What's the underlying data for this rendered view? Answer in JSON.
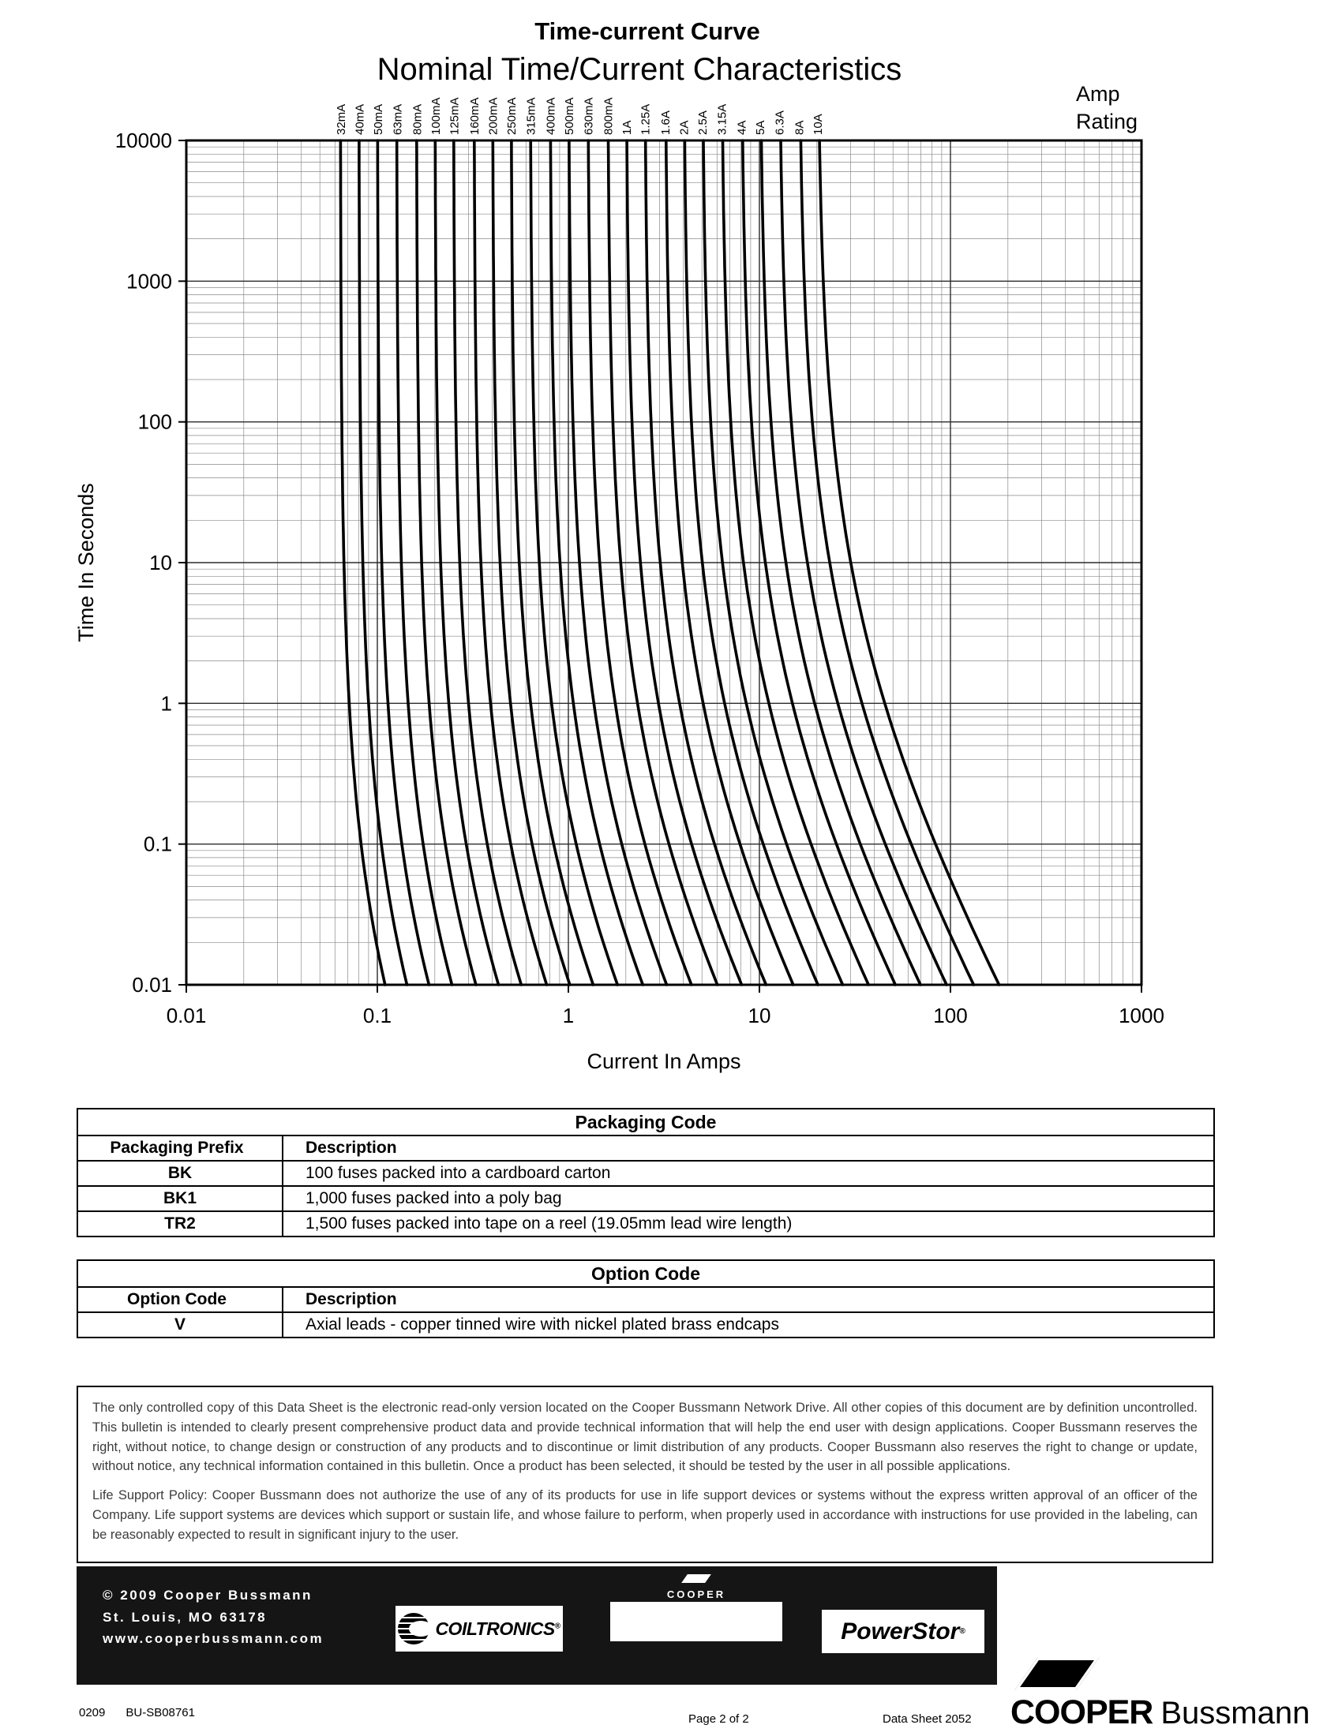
{
  "header": {
    "subtitle": "Time-current Curve",
    "title": "Nominal Time/Current Characteristics",
    "amp_rating_line1": "Amp",
    "amp_rating_line2": "Rating"
  },
  "chart_data": {
    "type": "line",
    "title": "Nominal Time/Current Characteristics",
    "xlabel": "Current In Amps",
    "ylabel": "Time In Seconds",
    "x_scale": "log",
    "y_scale": "log",
    "xlim": [
      0.01,
      1000
    ],
    "ylim": [
      0.01,
      10000
    ],
    "x_ticks": [
      "0.01",
      "0.1",
      "1",
      "10",
      "100",
      "1000"
    ],
    "y_ticks": [
      "10000",
      "1000",
      "100",
      "10",
      "1",
      "0.1",
      "0.01"
    ],
    "grid": true,
    "legend_position": "rotated amp-rating labels above top axis, one per curve",
    "series": [
      {
        "name": "32mA",
        "rating_amps": 0.032,
        "points_amps_seconds": [
          [
            0.064,
            10000
          ],
          [
            0.071,
            1
          ],
          [
            0.11,
            0.01
          ]
        ]
      },
      {
        "name": "40mA",
        "rating_amps": 0.04,
        "points_amps_seconds": [
          [
            0.08,
            10000
          ],
          [
            0.09,
            1
          ],
          [
            0.14,
            0.01
          ]
        ]
      },
      {
        "name": "50mA",
        "rating_amps": 0.05,
        "points_amps_seconds": [
          [
            0.1,
            10000
          ],
          [
            0.114,
            1
          ],
          [
            0.19,
            0.01
          ]
        ]
      },
      {
        "name": "63mA",
        "rating_amps": 0.063,
        "points_amps_seconds": [
          [
            0.126,
            10000
          ],
          [
            0.145,
            1
          ],
          [
            0.25,
            0.01
          ]
        ]
      },
      {
        "name": "80mA",
        "rating_amps": 0.08,
        "points_amps_seconds": [
          [
            0.16,
            10000
          ],
          [
            0.187,
            1
          ],
          [
            0.33,
            0.01
          ]
        ]
      },
      {
        "name": "100mA",
        "rating_amps": 0.1,
        "points_amps_seconds": [
          [
            0.2,
            10000
          ],
          [
            0.237,
            1
          ],
          [
            0.43,
            0.01
          ]
        ]
      },
      {
        "name": "125mA",
        "rating_amps": 0.125,
        "points_amps_seconds": [
          [
            0.25,
            10000
          ],
          [
            0.3,
            1
          ],
          [
            0.57,
            0.01
          ]
        ]
      },
      {
        "name": "160mA",
        "rating_amps": 0.16,
        "points_amps_seconds": [
          [
            0.32,
            10000
          ],
          [
            0.39,
            1
          ],
          [
            0.77,
            0.01
          ]
        ]
      },
      {
        "name": "200mA",
        "rating_amps": 0.2,
        "points_amps_seconds": [
          [
            0.4,
            10000
          ],
          [
            0.5,
            1
          ],
          [
            1.02,
            0.01
          ]
        ]
      },
      {
        "name": "250mA",
        "rating_amps": 0.25,
        "points_amps_seconds": [
          [
            0.5,
            10000
          ],
          [
            0.63,
            1
          ],
          [
            1.35,
            0.01
          ]
        ]
      },
      {
        "name": "315mA",
        "rating_amps": 0.315,
        "points_amps_seconds": [
          [
            0.63,
            10000
          ],
          [
            0.82,
            1
          ],
          [
            1.81,
            0.01
          ]
        ]
      },
      {
        "name": "400mA",
        "rating_amps": 0.4,
        "points_amps_seconds": [
          [
            0.8,
            10000
          ],
          [
            1.06,
            1
          ],
          [
            2.45,
            0.01
          ]
        ]
      },
      {
        "name": "500mA",
        "rating_amps": 0.5,
        "points_amps_seconds": [
          [
            1.0,
            10000
          ],
          [
            1.36,
            1
          ],
          [
            3.27,
            0.01
          ]
        ]
      },
      {
        "name": "630mA",
        "rating_amps": 0.63,
        "points_amps_seconds": [
          [
            1.26,
            10000
          ],
          [
            1.76,
            1
          ],
          [
            4.41,
            0.01
          ]
        ]
      },
      {
        "name": "800mA",
        "rating_amps": 0.8,
        "points_amps_seconds": [
          [
            1.6,
            10000
          ],
          [
            2.3,
            1
          ],
          [
            6.02,
            0.01
          ]
        ]
      },
      {
        "name": "1A",
        "rating_amps": 1.0,
        "points_amps_seconds": [
          [
            2.0,
            10000
          ],
          [
            2.96,
            1
          ],
          [
            8.07,
            0.01
          ]
        ]
      },
      {
        "name": "1.25A",
        "rating_amps": 1.25,
        "points_amps_seconds": [
          [
            2.5,
            10000
          ],
          [
            3.82,
            1
          ],
          [
            10.8,
            0.01
          ]
        ]
      },
      {
        "name": "1.6A",
        "rating_amps": 1.6,
        "points_amps_seconds": [
          [
            3.2,
            10000
          ],
          [
            5.08,
            1
          ],
          [
            15.0,
            0.01
          ]
        ]
      },
      {
        "name": "2A",
        "rating_amps": 2.0,
        "points_amps_seconds": [
          [
            4.0,
            10000
          ],
          [
            6.57,
            1
          ],
          [
            20.2,
            0.01
          ]
        ]
      },
      {
        "name": "2.5A",
        "rating_amps": 2.5,
        "points_amps_seconds": [
          [
            5.0,
            10000
          ],
          [
            8.53,
            1
          ],
          [
            27.2,
            0.01
          ]
        ]
      },
      {
        "name": "3.15A",
        "rating_amps": 3.15,
        "points_amps_seconds": [
          [
            6.3,
            10000
          ],
          [
            11.2,
            1
          ],
          [
            37.2,
            0.01
          ]
        ]
      },
      {
        "name": "4A",
        "rating_amps": 4.0,
        "points_amps_seconds": [
          [
            8.0,
            10000
          ],
          [
            14.9,
            1
          ],
          [
            51.4,
            0.01
          ]
        ]
      },
      {
        "name": "5A",
        "rating_amps": 5.0,
        "points_amps_seconds": [
          [
            10.0,
            10000
          ],
          [
            19.5,
            1
          ],
          [
            69.6,
            0.01
          ]
        ]
      },
      {
        "name": "6.3A",
        "rating_amps": 6.3,
        "points_amps_seconds": [
          [
            12.6,
            10000
          ],
          [
            25.7,
            1
          ],
          [
            95.4,
            0.01
          ]
        ]
      },
      {
        "name": "8A",
        "rating_amps": 8.0,
        "points_amps_seconds": [
          [
            16.0,
            10000
          ],
          [
            34.4,
            1
          ],
          [
            132,
            0.01
          ]
        ]
      },
      {
        "name": "10A",
        "rating_amps": 10.0,
        "points_amps_seconds": [
          [
            20.0,
            10000
          ],
          [
            45.3,
            1
          ],
          [
            180,
            0.01
          ]
        ]
      }
    ]
  },
  "tables": [
    {
      "title": "Packaging Code",
      "columns": [
        "Packaging Prefix",
        "Description"
      ],
      "rows": [
        [
          "BK",
          "100 fuses packed into a cardboard carton"
        ],
        [
          "BK1",
          "1,000 fuses packed into a poly bag"
        ],
        [
          "TR2",
          "1,500 fuses packed into tape on a reel (19.05mm lead wire length)"
        ]
      ]
    },
    {
      "title": "Option Code",
      "columns": [
        "Option Code",
        "Description"
      ],
      "rows": [
        [
          "V",
          "Axial leads - copper tinned wire with nickel plated brass endcaps"
        ]
      ]
    }
  ],
  "disclaimer": {
    "paragraphs": [
      "The only controlled copy of this Data Sheet is the electronic read-only version located on the Cooper Bussmann Network Drive. All other copies of this document are by definition uncontrolled. This bulletin is intended to clearly present comprehensive product data and provide technical information that will help the end user with design applications. Cooper Bussmann reserves the right, without notice, to change design or construction of any products and to discontinue or limit distribution of any products. Cooper Bussmann also reserves the right to change or update, without notice, any technical information contained in this bulletin. Once a product has been selected, it should be tested by the user in all possible applications.",
      "Life Support Policy: Cooper Bussmann does not authorize the use of any of its products for use in life support devices or systems without the express written approval of an officer of the Company. Life support systems are devices which support or sustain life, and whose failure to perform, when properly used in accordance with instructions for use provided in the labeling, can be reasonably expected to result in significant injury to the user."
    ]
  },
  "footer": {
    "copyright_lines": [
      "© 2009 Cooper Bussmann",
      "St. Louis, MO 63178",
      "www.cooperbussmann.com"
    ],
    "logos": {
      "coiltronics": "COILTRONICS",
      "cooper_small": "COOPER",
      "bussmann": "Bussmann",
      "powerstor": "PowerStor"
    },
    "bottom": {
      "date_code": "0209",
      "doc_code": "BU-SB08761",
      "page": "Page 2 of 2",
      "sheet": "Data Sheet 2052",
      "brand_primary": "COOPER",
      "brand_secondary": "Bussmann"
    }
  },
  "colors": {
    "ink": "#000000",
    "footer_bar": "#151515",
    "grid_minor": "#8a8a8a",
    "grid_major": "#2b2b2b",
    "disclaimer_text": "#3c3c3c"
  }
}
